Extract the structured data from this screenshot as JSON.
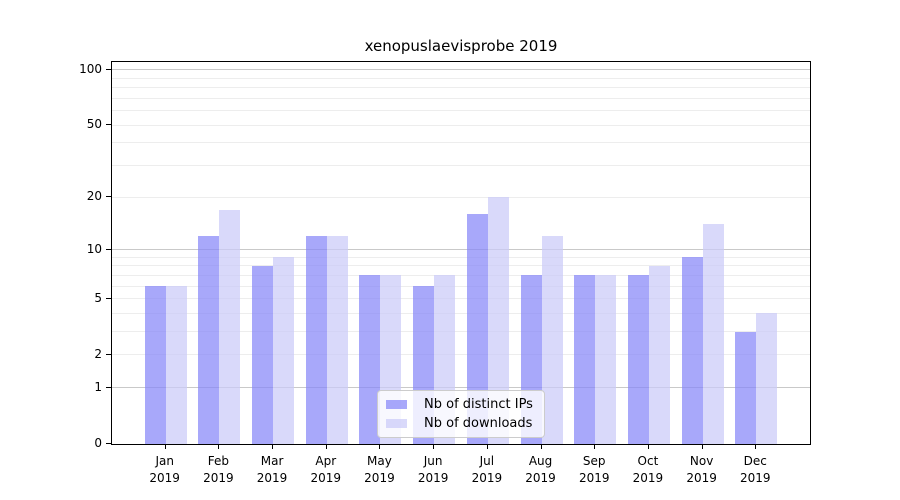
{
  "chart_data": {
    "type": "bar",
    "title": "xenopuslaevisprobe 2019",
    "categories": [
      "Jan",
      "Feb",
      "Mar",
      "Apr",
      "May",
      "Jun",
      "Jul",
      "Aug",
      "Sep",
      "Oct",
      "Nov",
      "Dec"
    ],
    "x_sub_label": "2019",
    "series": [
      {
        "name": "Nb of distinct IPs",
        "color": "rgba(134,134,248,0.72)",
        "values": [
          6,
          12,
          8,
          12,
          7,
          6,
          16,
          7,
          7,
          7,
          9,
          3
        ]
      },
      {
        "name": "Nb of downloads",
        "color": "rgba(202,202,248,0.72)",
        "values": [
          6,
          17,
          9,
          12,
          7,
          7,
          20,
          12,
          7,
          8,
          14,
          4
        ]
      }
    ],
    "xlabel": "",
    "ylabel": "",
    "yscale": "log1p",
    "ylim": [
      0,
      110
    ],
    "yticks": [
      0,
      1,
      2,
      5,
      10,
      20,
      50,
      100
    ],
    "grid": {
      "major": [
        1,
        10,
        100
      ],
      "minor": [
        2,
        3,
        4,
        5,
        6,
        7,
        8,
        9,
        20,
        30,
        40,
        50,
        60,
        70,
        80,
        90
      ]
    },
    "legend_position": "bottom-center"
  }
}
